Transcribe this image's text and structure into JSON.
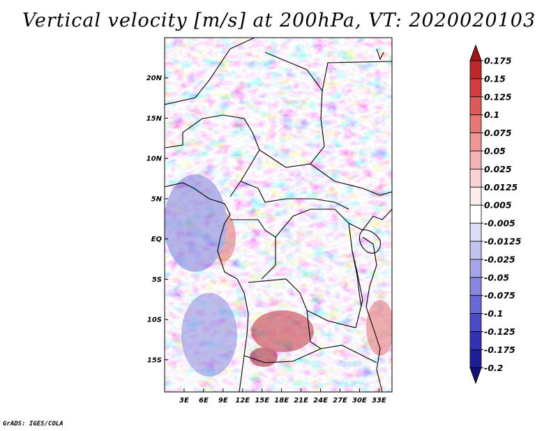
{
  "title": "Vertical velocity [m/s] at 200hPa, VT: 2020020103",
  "credit": "GrADS: IGES/COLA",
  "chart_data": {
    "type": "heatmap",
    "variable": "Vertical velocity",
    "units": "m/s",
    "level": "200hPa",
    "valid_time": "2020020103",
    "x_range": [
      0,
      35
    ],
    "y_range": [
      -19,
      25
    ],
    "lat_ticks": [
      {
        "value": 20,
        "label": "20N"
      },
      {
        "value": 15,
        "label": "15N"
      },
      {
        "value": 10,
        "label": "10N"
      },
      {
        "value": 5,
        "label": "5N"
      },
      {
        "value": 0,
        "label": "EQ"
      },
      {
        "value": -5,
        "label": "5S"
      },
      {
        "value": -10,
        "label": "10S"
      },
      {
        "value": -15,
        "label": "15S"
      }
    ],
    "lon_ticks": [
      {
        "value": 3,
        "label": "3E"
      },
      {
        "value": 6,
        "label": "6E"
      },
      {
        "value": 9,
        "label": "9E"
      },
      {
        "value": 12,
        "label": "12E"
      },
      {
        "value": 15,
        "label": "15E"
      },
      {
        "value": 18,
        "label": "18E"
      },
      {
        "value": 21,
        "label": "21E"
      },
      {
        "value": 24,
        "label": "24E"
      },
      {
        "value": 27,
        "label": "27E"
      },
      {
        "value": 30,
        "label": "30E"
      },
      {
        "value": 33,
        "label": "33E"
      }
    ],
    "colorbar": {
      "labels": [
        "0.175",
        "0.15",
        "0.125",
        "0.1",
        "0.075",
        "0.05",
        "0.025",
        "0.0125",
        "0.005",
        "-0.005",
        "-0.0125",
        "-0.025",
        "-0.05",
        "-0.075",
        "-0.1",
        "-0.125",
        "-0.175",
        "-0.2"
      ],
      "colors": [
        "#a41414",
        "#bf2828",
        "#d23c3c",
        "#de5a5a",
        "#e87878",
        "#f09696",
        "#f5b4b4",
        "#f9d2d2",
        "#fcecec",
        "#ffffff",
        "#dcdcf7",
        "#c3c3f0",
        "#a5a5e8",
        "#8787e0",
        "#6969d5",
        "#4b4bc8",
        "#3232b4",
        "#1e1e96",
        "#141478"
      ]
    }
  }
}
